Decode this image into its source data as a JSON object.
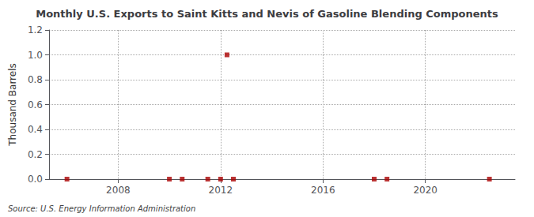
{
  "chart_data": {
    "type": "scatter",
    "title": "Monthly U.S. Exports to Saint Kitts and Nevis of Gasoline Blending Components",
    "ylabel": "Thousand Barrels",
    "source": "Source: U.S. Energy Information Administration",
    "color": "#aa0000",
    "marker": "square",
    "x": [
      2006.0,
      2010.0,
      2010.5,
      2011.5,
      2012.0,
      2012.25,
      2012.5,
      2018.0,
      2018.5,
      2022.5
    ],
    "values": [
      0.0,
      0.0,
      0.0,
      0.0,
      0.0,
      1.0,
      0.0,
      0.0,
      0.0,
      0.0
    ],
    "xlim": [
      2005.3,
      2023.5
    ],
    "xticks": [
      2008,
      2012,
      2016,
      2020
    ],
    "ylim": [
      0,
      1.2
    ],
    "yticks": [
      {
        "value": 0,
        "label": "0.0"
      },
      0.2,
      0.4,
      0.6,
      0.8,
      {
        "value": 1,
        "label": "1.0"
      },
      1.2
    ],
    "grid": true
  }
}
